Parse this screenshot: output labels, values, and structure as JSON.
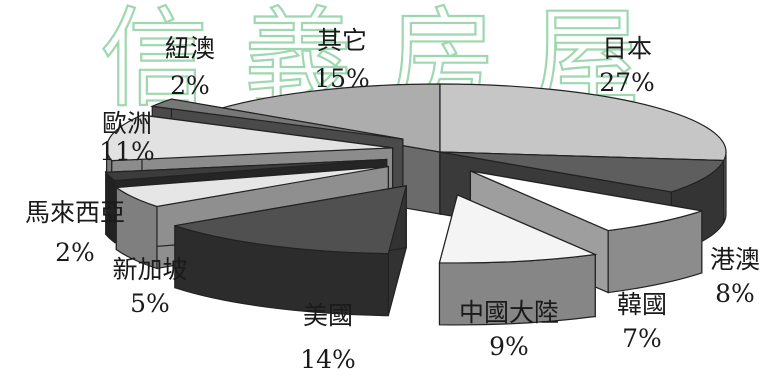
{
  "chart_data": {
    "type": "pie",
    "style": "3d-exploded",
    "watermark": "信義房屋",
    "slices": [
      {
        "label": "日本",
        "value": 27,
        "value_text": "27%",
        "color": "#c6c6c6"
      },
      {
        "label": "港澳",
        "value": 8,
        "value_text": "8%",
        "color": "#5e5e5e"
      },
      {
        "label": "韓國",
        "value": 7,
        "value_text": "7%",
        "color": "#ffffff"
      },
      {
        "label": "中國大陸",
        "value": 9,
        "value_text": "9%",
        "color": "#f4f4f4"
      },
      {
        "label": "美國",
        "value": 14,
        "value_text": "14%",
        "color": "#505050"
      },
      {
        "label": "新加坡",
        "value": 5,
        "value_text": "5%",
        "color": "#e6e6e6"
      },
      {
        "label": "馬來西亞",
        "value": 2,
        "value_text": "2%",
        "color": "#3c3c3c"
      },
      {
        "label": "歐洲",
        "value": 11,
        "value_text": "11%",
        "color": "#e2e2e2"
      },
      {
        "label": "紐澳",
        "value": 2,
        "value_text": "2%",
        "color": "#777777"
      },
      {
        "label": "其它",
        "value": 15,
        "value_text": "15%",
        "color": "#adadad"
      }
    ]
  }
}
